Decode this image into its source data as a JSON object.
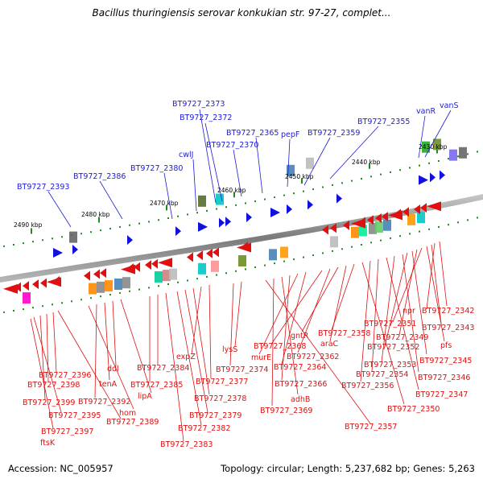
{
  "title": "Bacillus thuringiensis serovar konkukian str. 97-27, complet...",
  "footer": {
    "accession": "Accession: NC_005957",
    "topology": "Topology: circular; Length: 5,237,682 bp; Genes: 5,263"
  },
  "colors": {
    "forward_gene": "#1010e0",
    "reverse_gene": "#e01010",
    "forward_label": "#1c1cd8",
    "reverse_label": "#dd1111",
    "backbone": "#808080",
    "tick": "#1f8a1f"
  },
  "kbp_labels": [
    "2430 kbp",
    "2440 kbp",
    "2450 kbp",
    "2460 kbp",
    "2470 kbp",
    "2480 kbp",
    "2490 kbp"
  ],
  "forward_labels": [
    "vanS",
    "vanR",
    "BT9727_2355",
    "BT9727_2359",
    "pepF",
    "BT9727_2365",
    "BT9727_2370",
    "BT9727_2372",
    "BT9727_2373",
    "cwlJ",
    "BT9727_2380",
    "BT9727_2386",
    "BT9727_2393"
  ],
  "reverse_labels": [
    "BT9727_2342",
    "npr",
    "BT9727_2343",
    "pfs",
    "BT9727_2351",
    "BT9727_2349",
    "BT9727_2345",
    "BT9727_2352",
    "BT9727_2346",
    "BT9727_2353",
    "BT9727_2347",
    "BT9727_2354",
    "BT9727_2356",
    "BT9727_2350",
    "BT9727_2358",
    "araC",
    "gntR",
    "BT9727_2362",
    "BT9727_2368",
    "BT9727_2364",
    "murE",
    "BT9727_2366",
    "adhB",
    "BT9727_2369",
    "BT9727_2357",
    "lysS",
    "BT9727_2374",
    "BT9727_2377",
    "expZ",
    "BT9727_2378",
    "BT9727_2379",
    "BT9727_2382",
    "BT9727_2383",
    "BT9727_2384",
    "BT9727_2385",
    "lipA",
    "ddl",
    "tenA",
    "BT9727_2392",
    "hom",
    "BT9727_2389",
    "BT9727_2396",
    "BT9727_2398",
    "BT9727_2399",
    "BT9727_2395",
    "BT9727_2397",
    "ftsK"
  ]
}
